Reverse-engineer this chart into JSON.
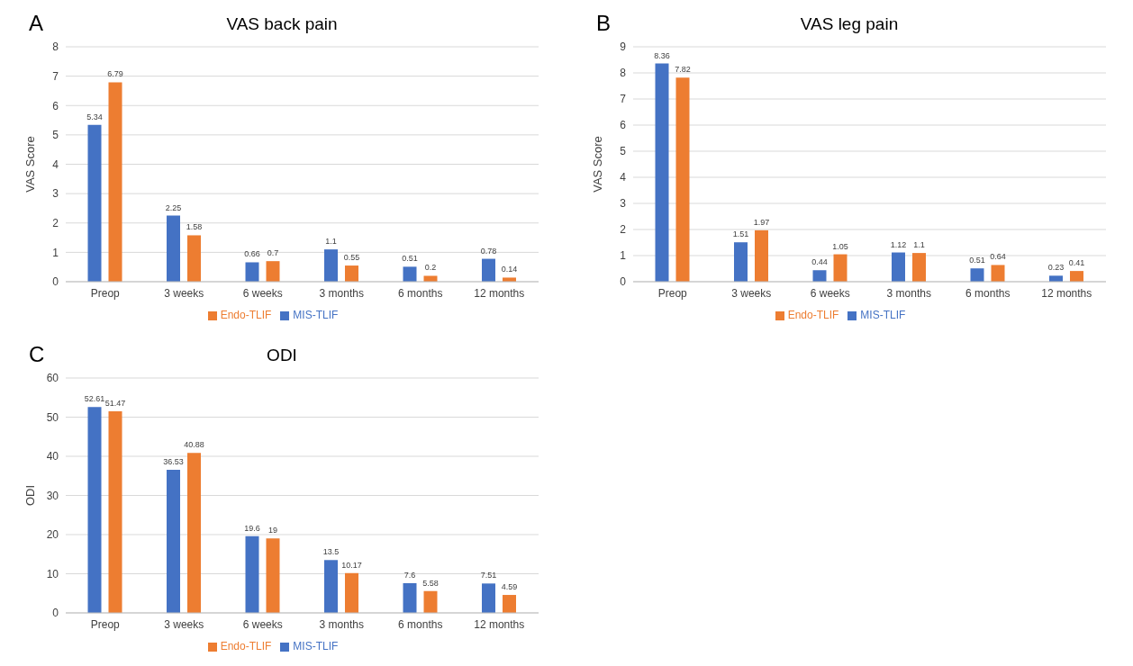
{
  "chart_data": [
    {
      "type": "bar",
      "title": "VAS back pain",
      "annotations": [
        "A"
      ],
      "ylabel": "VAS Score",
      "categories": [
        "Preop",
        "3 weeks",
        "6 weeks",
        "3 months",
        "6 months",
        "12 months"
      ],
      "series": [
        {
          "name": "MIS-TLIF",
          "color": "#4472c4",
          "values": [
            5.34,
            2.25,
            0.66,
            1.1,
            0.51,
            0.78
          ]
        },
        {
          "name": "Endo-TLIF",
          "color": "#ed7d31",
          "values": [
            6.79,
            1.58,
            0.7,
            0.55,
            0.2,
            0.14
          ]
        }
      ],
      "ylim": [
        0,
        8
      ],
      "yticks": [
        0,
        1,
        2,
        3,
        4,
        5,
        6,
        7,
        8
      ],
      "grid": "y",
      "legend": "bottom",
      "data_labels": true
    },
    {
      "type": "bar",
      "title": "VAS leg pain",
      "annotations": [
        "B"
      ],
      "ylabel": "VAS Score",
      "categories": [
        "Preop",
        "3 weeks",
        "6 weeks",
        "3 months",
        "6 months",
        "12 months"
      ],
      "series": [
        {
          "name": "MIS-TLIF",
          "color": "#4472c4",
          "values": [
            8.36,
            1.51,
            0.44,
            1.12,
            0.51,
            0.23
          ]
        },
        {
          "name": "Endo-TLIF",
          "color": "#ed7d31",
          "values": [
            7.82,
            1.97,
            1.05,
            1.1,
            0.64,
            0.41
          ]
        }
      ],
      "ylim": [
        0,
        9
      ],
      "yticks": [
        0,
        1,
        2,
        3,
        4,
        5,
        6,
        7,
        8,
        9
      ],
      "grid": "y",
      "legend": "bottom",
      "data_labels": true
    },
    {
      "type": "bar",
      "title": "ODI",
      "annotations": [
        "C"
      ],
      "ylabel": "ODI",
      "categories": [
        "Preop",
        "3 weeks",
        "6 weeks",
        "3 months",
        "6 months",
        "12 months"
      ],
      "series": [
        {
          "name": "MIS-TLIF",
          "color": "#4472c4",
          "values": [
            52.61,
            36.53,
            19.6,
            13.5,
            7.6,
            7.51
          ]
        },
        {
          "name": "Endo-TLIF",
          "color": "#ed7d31",
          "values": [
            51.47,
            40.88,
            19,
            10.17,
            5.58,
            4.59
          ]
        }
      ],
      "ylim": [
        0,
        60
      ],
      "yticks": [
        0,
        10,
        20,
        30,
        40,
        50,
        60
      ],
      "grid": "y",
      "legend": "bottom",
      "data_labels": true
    }
  ]
}
